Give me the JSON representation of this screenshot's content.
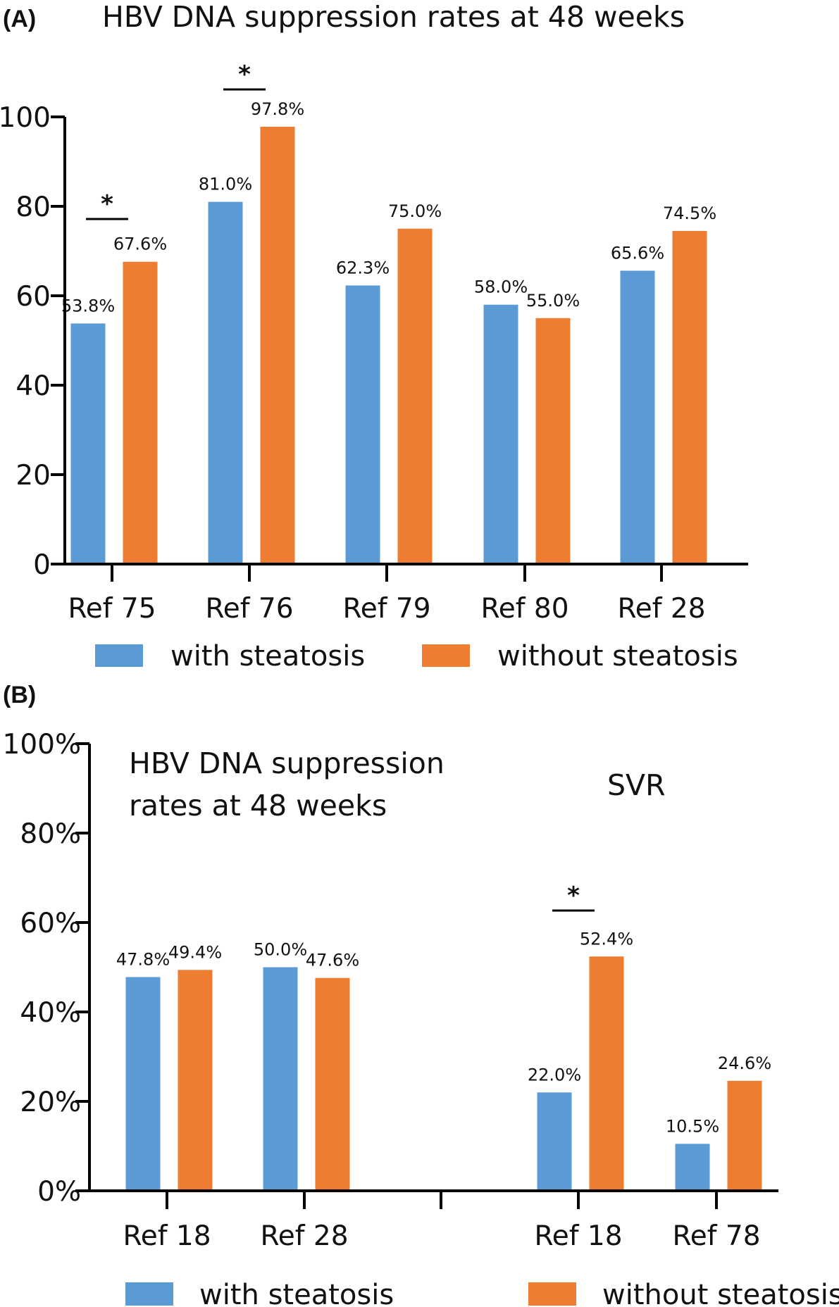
{
  "colors": {
    "with_steatosis": "#5b9bd5",
    "without_steatosis": "#ed7d31"
  },
  "chart_data": [
    {
      "panel": "(A)",
      "type": "bar",
      "title": "HBV DNA suppression rates at 48 weeks",
      "categories": [
        "Ref 75",
        "Ref 76",
        "Ref 79",
        "Ref 80",
        "Ref 28"
      ],
      "series": [
        {
          "name": "with steatosis",
          "values": [
            53.8,
            81.0,
            62.3,
            58.0,
            65.6
          ],
          "labels": [
            "53.8%",
            "81.0%",
            "62.3%",
            "58.0%",
            "65.6%"
          ]
        },
        {
          "name": "without steatosis",
          "values": [
            67.6,
            97.8,
            75.0,
            55.0,
            74.5
          ],
          "labels": [
            "67.6%",
            "97.8%",
            "75.0%",
            "55.0%",
            "74.5%"
          ]
        }
      ],
      "ylim": [
        0,
        100
      ],
      "yticks": [
        "0",
        "20",
        "40",
        "60",
        "80",
        "100"
      ],
      "significance": [
        {
          "category": "Ref 75",
          "label": "*"
        },
        {
          "category": "Ref 76",
          "label": "*"
        }
      ],
      "legend": "bottom"
    },
    {
      "panel": "(B)",
      "type": "bar",
      "group_titles": [
        {
          "lines": [
            "HBV DNA suppression",
            "rates at 48 weeks"
          ]
        },
        {
          "lines": [
            "SVR"
          ]
        }
      ],
      "categories": [
        "Ref 18",
        "Ref 28",
        "",
        "Ref 18",
        "Ref 78"
      ],
      "series": [
        {
          "name": "with steatosis",
          "values": [
            47.8,
            50.0,
            null,
            22.0,
            10.5
          ],
          "labels": [
            "47.8%",
            "50.0%",
            "",
            "22.0%",
            "10.5%"
          ]
        },
        {
          "name": "without steatosis",
          "values": [
            49.4,
            47.6,
            null,
            52.4,
            24.6
          ],
          "labels": [
            "49.4%",
            "47.6%",
            "",
            "52.4%",
            "24.6%"
          ]
        }
      ],
      "ylim": [
        0,
        100
      ],
      "yticks": [
        "0%",
        "20%",
        "40%",
        "60%",
        "80%",
        "100%"
      ],
      "significance": [
        {
          "category_index": 3,
          "label": "*"
        }
      ],
      "legend": "bottom"
    }
  ]
}
